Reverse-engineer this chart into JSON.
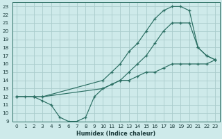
{
  "xlabel": "Humidex (Indice chaleur)",
  "xlim": [
    -0.5,
    23.5
  ],
  "ylim": [
    9,
    23.5
  ],
  "yticks": [
    9,
    10,
    11,
    12,
    13,
    14,
    15,
    16,
    17,
    18,
    19,
    20,
    21,
    22,
    23
  ],
  "xticks": [
    0,
    1,
    2,
    3,
    4,
    5,
    6,
    7,
    8,
    9,
    10,
    11,
    12,
    13,
    14,
    15,
    16,
    17,
    18,
    19,
    20,
    21,
    22,
    23
  ],
  "bg_color": "#ceeaea",
  "grid_color": "#aacccc",
  "line_color": "#2a6e62",
  "line1_x": [
    0,
    1,
    2,
    3,
    4,
    5,
    6,
    7,
    8,
    9,
    10,
    11,
    12,
    13,
    14,
    15,
    16,
    17,
    18,
    19,
    20,
    21,
    22,
    23
  ],
  "line1_y": [
    12,
    12,
    12,
    11.5,
    11,
    9.5,
    9,
    9,
    9.5,
    12,
    13,
    13.5,
    14,
    14,
    14.5,
    15,
    15,
    15.5,
    16,
    16,
    16,
    16,
    16,
    16.5
  ],
  "line2_x": [
    0,
    2,
    3,
    10,
    11,
    12,
    13,
    14,
    15,
    16,
    17,
    18,
    19,
    20,
    21,
    22,
    23
  ],
  "line2_y": [
    12,
    12,
    12,
    13,
    13.5,
    14,
    15,
    16,
    17,
    18.5,
    20,
    21,
    21,
    21,
    18,
    17,
    16.5
  ],
  "line3_x": [
    0,
    2,
    3,
    10,
    11,
    12,
    13,
    14,
    15,
    16,
    17,
    18,
    19,
    20,
    21,
    22,
    23
  ],
  "line3_y": [
    12,
    12,
    12,
    14,
    15,
    16,
    17.5,
    18.5,
    20,
    21.5,
    22.5,
    23,
    23,
    22.5,
    18,
    17,
    16.5
  ]
}
